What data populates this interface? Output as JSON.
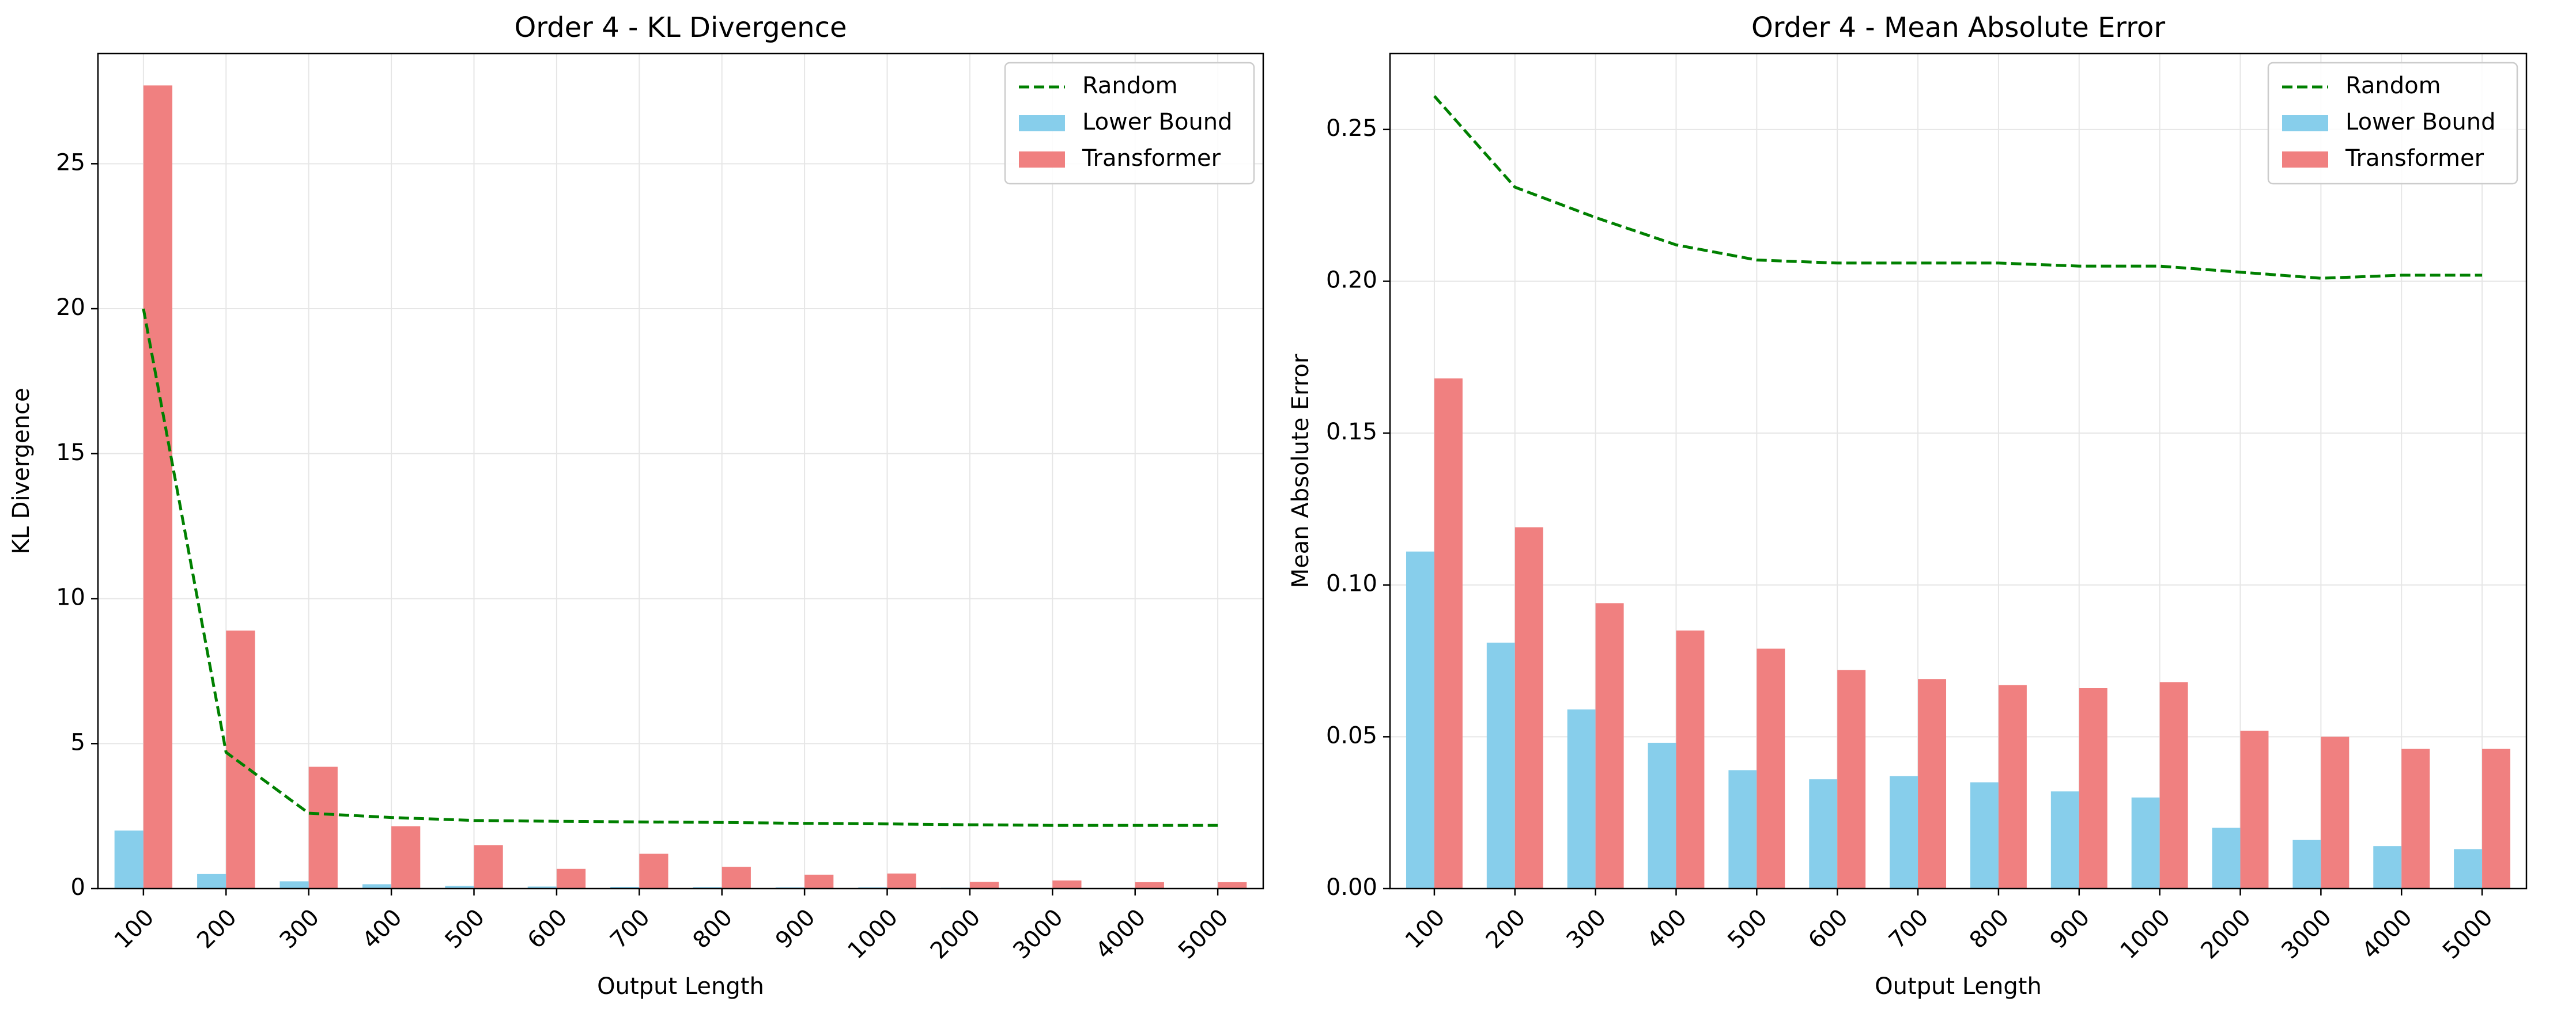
{
  "colors": {
    "random": "#008000",
    "lower_bound": "#87CEEB",
    "transformer": "#F08080",
    "grid": "#e6e6e6",
    "axis": "#000000",
    "legend_border": "#cccccc"
  },
  "chart_data": [
    {
      "type": "bar",
      "title": "Order 4 - KL Divergence",
      "xlabel": "Output Length",
      "ylabel": "KL Divergence",
      "categories": [
        "100",
        "200",
        "300",
        "400",
        "500",
        "600",
        "700",
        "800",
        "900",
        "1000",
        "2000",
        "3000",
        "4000",
        "5000"
      ],
      "ylim": [
        0,
        28.8
      ],
      "yticks": [
        0,
        5,
        10,
        15,
        20,
        25
      ],
      "ytick_labels": [
        "0",
        "5",
        "10",
        "15",
        "20",
        "25"
      ],
      "grid": true,
      "legend_position": "top-right",
      "legend": [
        "Random",
        "Lower Bound",
        "Transformer"
      ],
      "series": [
        {
          "name": "Lower Bound",
          "kind": "bar",
          "color": "#87CEEB",
          "values": [
            2.0,
            0.5,
            0.25,
            0.15,
            0.09,
            0.07,
            0.06,
            0.05,
            0.04,
            0.04,
            0.03,
            0.02,
            0.02,
            0.02
          ]
        },
        {
          "name": "Transformer",
          "kind": "bar",
          "color": "#F08080",
          "values": [
            27.7,
            8.9,
            4.2,
            2.15,
            1.5,
            0.68,
            1.2,
            0.75,
            0.48,
            0.52,
            0.23,
            0.28,
            0.22,
            0.22
          ]
        },
        {
          "name": "Random",
          "kind": "line",
          "color": "#008000",
          "dashed": true,
          "values": [
            20.0,
            4.7,
            2.6,
            2.45,
            2.35,
            2.32,
            2.3,
            2.28,
            2.25,
            2.23,
            2.2,
            2.18,
            2.18,
            2.18
          ]
        }
      ]
    },
    {
      "type": "bar",
      "title": "Order 4 - Mean Absolute Error",
      "xlabel": "Output Length",
      "ylabel": "Mean Absolute Error",
      "categories": [
        "100",
        "200",
        "300",
        "400",
        "500",
        "600",
        "700",
        "800",
        "900",
        "1000",
        "2000",
        "3000",
        "4000",
        "5000"
      ],
      "ylim": [
        0,
        0.275
      ],
      "yticks": [
        0,
        0.05,
        0.1,
        0.15,
        0.2,
        0.25
      ],
      "ytick_labels": [
        "0.00",
        "0.05",
        "0.10",
        "0.15",
        "0.20",
        "0.25"
      ],
      "grid": true,
      "legend_position": "top-right",
      "legend": [
        "Random",
        "Lower Bound",
        "Transformer"
      ],
      "series": [
        {
          "name": "Lower Bound",
          "kind": "bar",
          "color": "#87CEEB",
          "values": [
            0.111,
            0.081,
            0.059,
            0.048,
            0.039,
            0.036,
            0.037,
            0.035,
            0.032,
            0.03,
            0.02,
            0.016,
            0.014,
            0.013
          ]
        },
        {
          "name": "Transformer",
          "kind": "bar",
          "color": "#F08080",
          "values": [
            0.168,
            0.119,
            0.094,
            0.085,
            0.079,
            0.072,
            0.069,
            0.067,
            0.066,
            0.068,
            0.052,
            0.05,
            0.046,
            0.046
          ]
        },
        {
          "name": "Random",
          "kind": "line",
          "color": "#008000",
          "dashed": true,
          "values": [
            0.261,
            0.231,
            0.221,
            0.212,
            0.207,
            0.206,
            0.206,
            0.206,
            0.205,
            0.205,
            0.203,
            0.201,
            0.202,
            0.202
          ]
        }
      ]
    }
  ]
}
